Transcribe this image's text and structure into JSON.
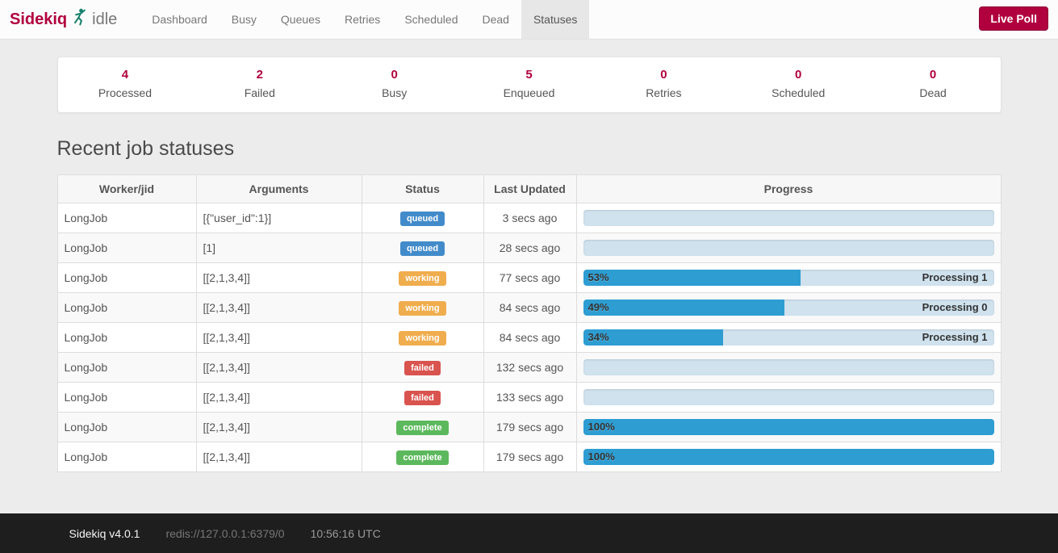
{
  "navbar": {
    "brand": "Sidekiq",
    "status": "idle",
    "items": [
      {
        "label": "Dashboard",
        "active": false
      },
      {
        "label": "Busy",
        "active": false
      },
      {
        "label": "Queues",
        "active": false
      },
      {
        "label": "Retries",
        "active": false
      },
      {
        "label": "Scheduled",
        "active": false
      },
      {
        "label": "Dead",
        "active": false
      },
      {
        "label": "Statuses",
        "active": true
      }
    ],
    "live_poll": "Live Poll"
  },
  "stats": [
    {
      "value": "4",
      "label": "Processed"
    },
    {
      "value": "2",
      "label": "Failed"
    },
    {
      "value": "0",
      "label": "Busy"
    },
    {
      "value": "5",
      "label": "Enqueued"
    },
    {
      "value": "0",
      "label": "Retries"
    },
    {
      "value": "0",
      "label": "Scheduled"
    },
    {
      "value": "0",
      "label": "Dead"
    }
  ],
  "main": {
    "heading": "Recent job statuses"
  },
  "table": {
    "headers": [
      "Worker/jid",
      "Arguments",
      "Status",
      "Last Updated",
      "Progress"
    ],
    "rows": [
      {
        "worker": "LongJob",
        "args": "[{\"user_id\":1}]",
        "status": "queued",
        "updated": "3 secs ago",
        "pct": 0,
        "pct_label": "",
        "message": ""
      },
      {
        "worker": "LongJob",
        "args": "[1]",
        "status": "queued",
        "updated": "28 secs ago",
        "pct": 0,
        "pct_label": "",
        "message": ""
      },
      {
        "worker": "LongJob",
        "args": "[[2,1,3,4]]",
        "status": "working",
        "updated": "77 secs ago",
        "pct": 53,
        "pct_label": "53%",
        "message": "Processing 1"
      },
      {
        "worker": "LongJob",
        "args": "[[2,1,3,4]]",
        "status": "working",
        "updated": "84 secs ago",
        "pct": 49,
        "pct_label": "49%",
        "message": "Processing 0"
      },
      {
        "worker": "LongJob",
        "args": "[[2,1,3,4]]",
        "status": "working",
        "updated": "84 secs ago",
        "pct": 34,
        "pct_label": "34%",
        "message": "Processing 1"
      },
      {
        "worker": "LongJob",
        "args": "[[2,1,3,4]]",
        "status": "failed",
        "updated": "132 secs ago",
        "pct": 0,
        "pct_label": "",
        "message": ""
      },
      {
        "worker": "LongJob",
        "args": "[[2,1,3,4]]",
        "status": "failed",
        "updated": "133 secs ago",
        "pct": 0,
        "pct_label": "",
        "message": ""
      },
      {
        "worker": "LongJob",
        "args": "[[2,1,3,4]]",
        "status": "complete",
        "updated": "179 secs ago",
        "pct": 100,
        "pct_label": "100%",
        "message": ""
      },
      {
        "worker": "LongJob",
        "args": "[[2,1,3,4]]",
        "status": "complete",
        "updated": "179 secs ago",
        "pct": 100,
        "pct_label": "100%",
        "message": ""
      }
    ]
  },
  "footer": {
    "version": "Sidekiq v4.0.1",
    "redis": "redis://127.0.0.1:6379/0",
    "time": "10:56:16 UTC"
  },
  "colors": {
    "accent": "#b1003e",
    "badge_queued": "#428bca",
    "badge_working": "#f0ad4e",
    "badge_failed": "#d9534f",
    "badge_complete": "#5cb85c",
    "progress_fill": "#2d9dd2",
    "progress_track": "#cfe2ee",
    "logo_icon": "#17806d"
  }
}
